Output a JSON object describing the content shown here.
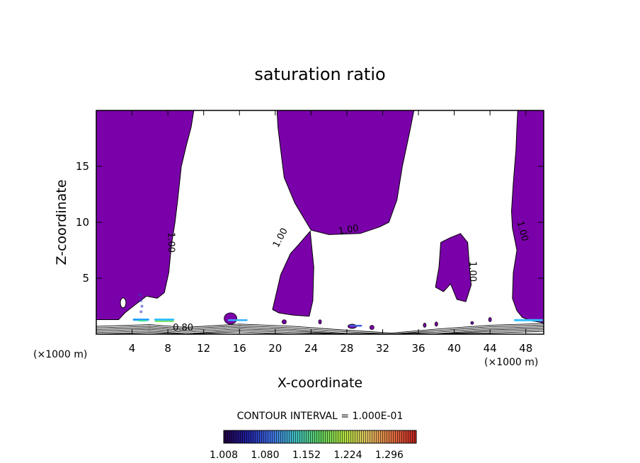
{
  "chart_data": {
    "type": "heatmap",
    "title": "saturation ratio",
    "xlabel": "X-coordinate",
    "ylabel": "Z-coordinate",
    "x_unit_left": "(×1000 m)",
    "x_unit_right": "(×1000 m)",
    "xlim": [
      0,
      50
    ],
    "ylim": [
      0,
      20
    ],
    "x_ticks": [
      4,
      8,
      12,
      16,
      20,
      24,
      28,
      32,
      36,
      40,
      44,
      48
    ],
    "y_ticks": [
      5,
      10,
      15
    ],
    "contour_labels": [
      {
        "text": "1.00",
        "x": 8.3,
        "z": 8.2,
        "angle": 90
      },
      {
        "text": "1.00",
        "x": 20.6,
        "z": 8.6,
        "angle": -62
      },
      {
        "text": "1.00",
        "x": 28.2,
        "z": 9.3,
        "angle": -10
      },
      {
        "text": "1.00",
        "x": 42.0,
        "z": 5.6,
        "angle": 90
      },
      {
        "text": "1.00",
        "x": 47.6,
        "z": 9.2,
        "angle": 75
      },
      {
        "text": "0.80",
        "x": 9.7,
        "z": 0.55,
        "angle": 0
      }
    ],
    "contour_interval_text": "CONTOUR INTERVAL = 1.000E-01",
    "colorbar": {
      "tick_labels": [
        "1.008",
        "1.080",
        "1.152",
        "1.224",
        "1.296"
      ],
      "colors": [
        "#200040",
        "#2020a0",
        "#4070e0",
        "#40c0c0",
        "#60d060",
        "#b0e040",
        "#e0c060",
        "#e07040",
        "#c02020"
      ]
    },
    "fill_color": "#7a00aa"
  }
}
